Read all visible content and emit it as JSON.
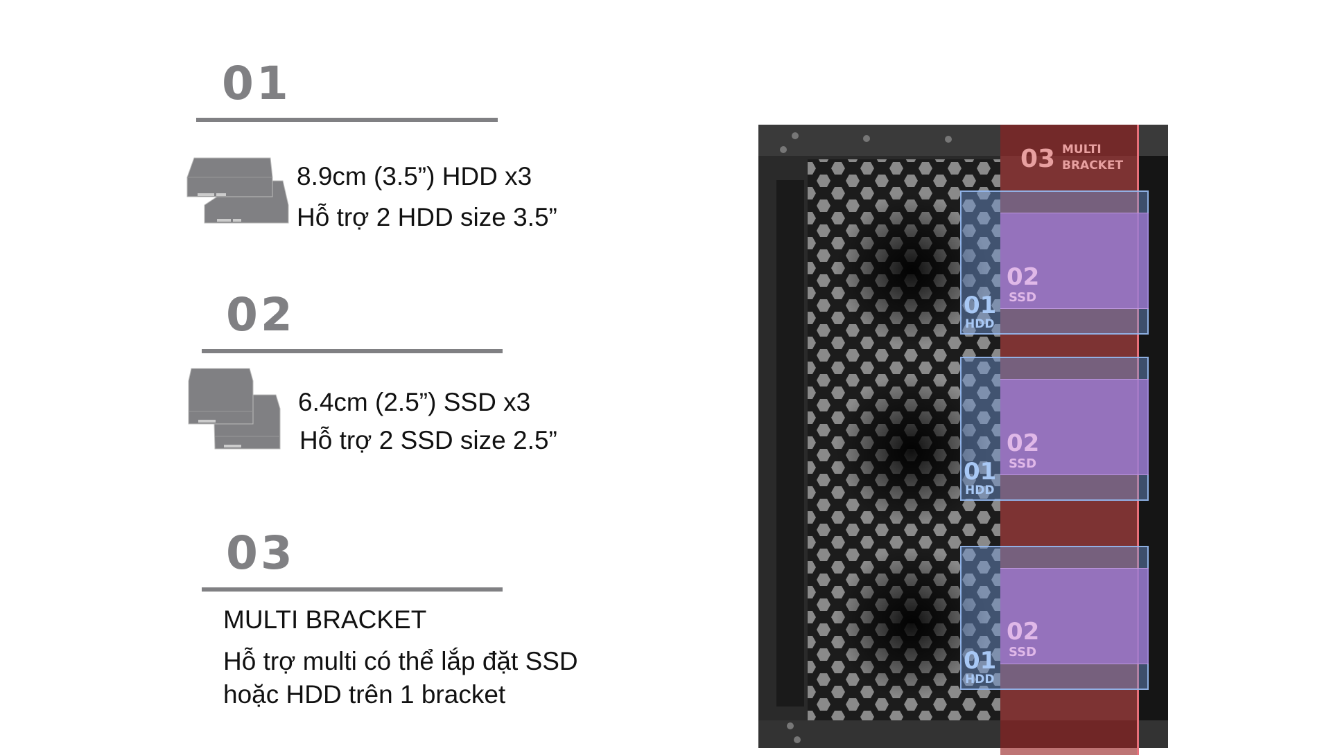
{
  "sections": [
    {
      "number": "01",
      "lines": [
        "8.9cm (3.5”) HDD x3",
        "Hỗ trợ 2 HDD size 3.5”"
      ],
      "icon": "hdd-stack-icon"
    },
    {
      "number": "02",
      "lines": [
        "6.4cm (2.5”) SSD x3",
        "Hỗ trợ 2  SSD size 2.5”"
      ],
      "icon": "ssd-stack-icon"
    },
    {
      "number": "03",
      "lines": [
        "MULTI BRACKET",
        "Hỗ trợ multi có thể lắp đặt SSD",
        "hoặc HDD trên 1 bracket"
      ]
    }
  ],
  "overlay": {
    "bracket_number": "03",
    "bracket_label_1": "MULTI",
    "bracket_label_2": "BRACKET",
    "slots": [
      {
        "hdd_num": "01",
        "hdd_label": "HDD",
        "ssd_num": "02",
        "ssd_label": "SSD"
      },
      {
        "hdd_num": "01",
        "hdd_label": "HDD",
        "ssd_num": "02",
        "ssd_label": "SSD"
      },
      {
        "hdd_num": "01",
        "hdd_label": "HDD",
        "ssd_num": "02",
        "ssd_label": "SSD"
      }
    ]
  },
  "colors": {
    "accent_gray": "#808083",
    "hdd_overlay": "#6e96d7",
    "ssd_overlay": "#a078d2",
    "bracket_overlay": "#961e1e"
  }
}
